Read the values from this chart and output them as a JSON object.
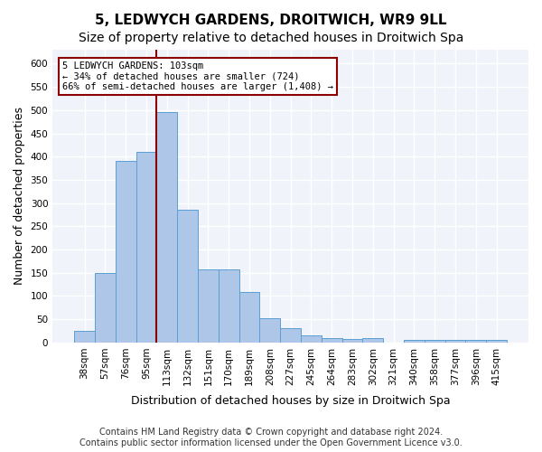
{
  "title": "5, LEDWYCH GARDENS, DROITWICH, WR9 9LL",
  "subtitle": "Size of property relative to detached houses in Droitwich Spa",
  "xlabel": "Distribution of detached houses by size in Droitwich Spa",
  "ylabel": "Number of detached properties",
  "categories": [
    "38sqm",
    "57sqm",
    "76sqm",
    "95sqm",
    "113sqm",
    "132sqm",
    "151sqm",
    "170sqm",
    "189sqm",
    "208sqm",
    "227sqm",
    "245sqm",
    "264sqm",
    "283sqm",
    "302sqm",
    "321sqm",
    "340sqm",
    "358sqm",
    "377sqm",
    "396sqm",
    "415sqm"
  ],
  "values": [
    25,
    150,
    390,
    410,
    495,
    285,
    158,
    158,
    108,
    53,
    30,
    15,
    10,
    8,
    10,
    0,
    5,
    5,
    5,
    5,
    5
  ],
  "bar_color": "#aec6e8",
  "bar_edge_color": "#5a9fd4",
  "vline_x": 4,
  "vline_color": "#8b0000",
  "annotation_text": "5 LEDWYCH GARDENS: 103sqm\n← 34% of detached houses are smaller (724)\n66% of semi-detached houses are larger (1,408) →",
  "annotation_box_color": "white",
  "annotation_box_edge_color": "#8b0000",
  "ylim": [
    0,
    630
  ],
  "yticks": [
    0,
    50,
    100,
    150,
    200,
    250,
    300,
    350,
    400,
    450,
    500,
    550,
    600
  ],
  "footnote": "Contains HM Land Registry data © Crown copyright and database right 2024.\nContains public sector information licensed under the Open Government Licence v3.0.",
  "bg_color": "#f0f4fa",
  "grid_color": "white",
  "title_fontsize": 11,
  "subtitle_fontsize": 10,
  "tick_fontsize": 7.5,
  "ylabel_fontsize": 9,
  "xlabel_fontsize": 9,
  "footnote_fontsize": 7
}
